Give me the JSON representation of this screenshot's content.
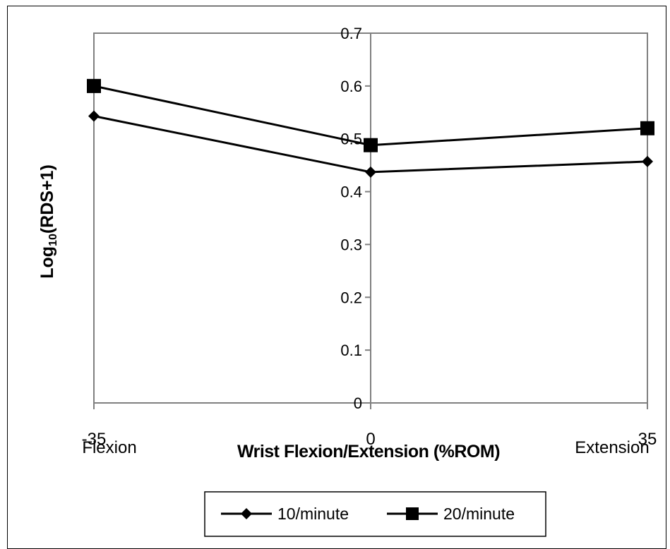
{
  "colors": {
    "series_line": "#000000",
    "axis": "#808080",
    "frame": "#000000",
    "background": "#ffffff"
  },
  "chart_data": {
    "type": "line",
    "x": [
      -35,
      0,
      35
    ],
    "x_tick_labels": [
      "-35",
      "0",
      "35"
    ],
    "x_end_labels": [
      "Flexion",
      "Extension"
    ],
    "xlabel": "Wrist Flexion/Extension (%ROM)",
    "ylabel": {
      "prefix": "Log",
      "subscript": "10",
      "suffix": "(RDS+1)"
    },
    "ylim": [
      0,
      0.7
    ],
    "y_ticks": [
      0,
      0.1,
      0.2,
      0.3,
      0.4,
      0.5,
      0.6,
      0.7
    ],
    "y_tick_labels": [
      "0",
      "0.1",
      "0.2",
      "0.3",
      "0.4",
      "0.5",
      "0.6",
      "0.7"
    ],
    "grid": false,
    "legend_position": "bottom",
    "series": [
      {
        "name": "10/minute",
        "marker": "diamond",
        "values": [
          0.543,
          0.437,
          0.457
        ]
      },
      {
        "name": "20/minute",
        "marker": "square",
        "values": [
          0.6,
          0.488,
          0.52
        ]
      }
    ]
  }
}
